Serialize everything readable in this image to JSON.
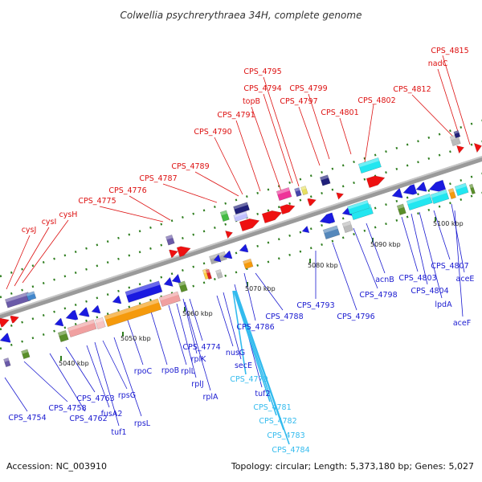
{
  "title": "Colwellia psychrerythraea 34H, complete genome",
  "footer": {
    "accession": "Accession: NC_003910",
    "summary": "Topology: circular; Length: 5,373,180 bp; Genes: 5,027"
  },
  "colors": {
    "top_strand_label": "#dd1111",
    "bottom_strand_label": "#1a1ad0",
    "rna_label": "#33bbee",
    "backbone": "#9a9a9a",
    "tick": "#2e7d1e"
  },
  "scale_labels": [
    "5040 kbp",
    "5050 kbp",
    "5060 kbp",
    "5070 kbp",
    "5080 kbp",
    "5090 kbp",
    "5100 kbp"
  ],
  "top_labels": [
    "CPS_4815",
    "nadC",
    "CPS_4812",
    "CPS_4802",
    "CPS_4801",
    "CPS_4799",
    "CPS_4797",
    "CPS_4795",
    "CPS_4794",
    "topB",
    "CPS_4791",
    "CPS_4790",
    "CPS_4789",
    "CPS_4787",
    "CPS_4776",
    "CPS_4775",
    "cysH",
    "cysI",
    "cysJ"
  ],
  "bottom_labels": [
    "CPS_4754",
    "CPS_4758",
    "CPS_4762",
    "CPS_4763",
    "fusA2",
    "tuf1",
    "rpsG",
    "rpsL",
    "rpoC",
    "rpoB",
    "rplL",
    "rplJ",
    "rplA",
    "rplK",
    "nusG",
    "secE",
    "CPS_4774",
    "tuf2",
    "CPS_4786",
    "CPS_4788",
    "CPS_4793",
    "CPS_4796",
    "CPS_4798",
    "acnB",
    "CPS_4803",
    "CPS_4804",
    "lpdA",
    "CPS_4807",
    "aceE",
    "aceF"
  ],
  "rna_labels": [
    "CPS_4779",
    "CPS_4781",
    "CPS_4782",
    "CPS_4783",
    "CPS_4784"
  ]
}
